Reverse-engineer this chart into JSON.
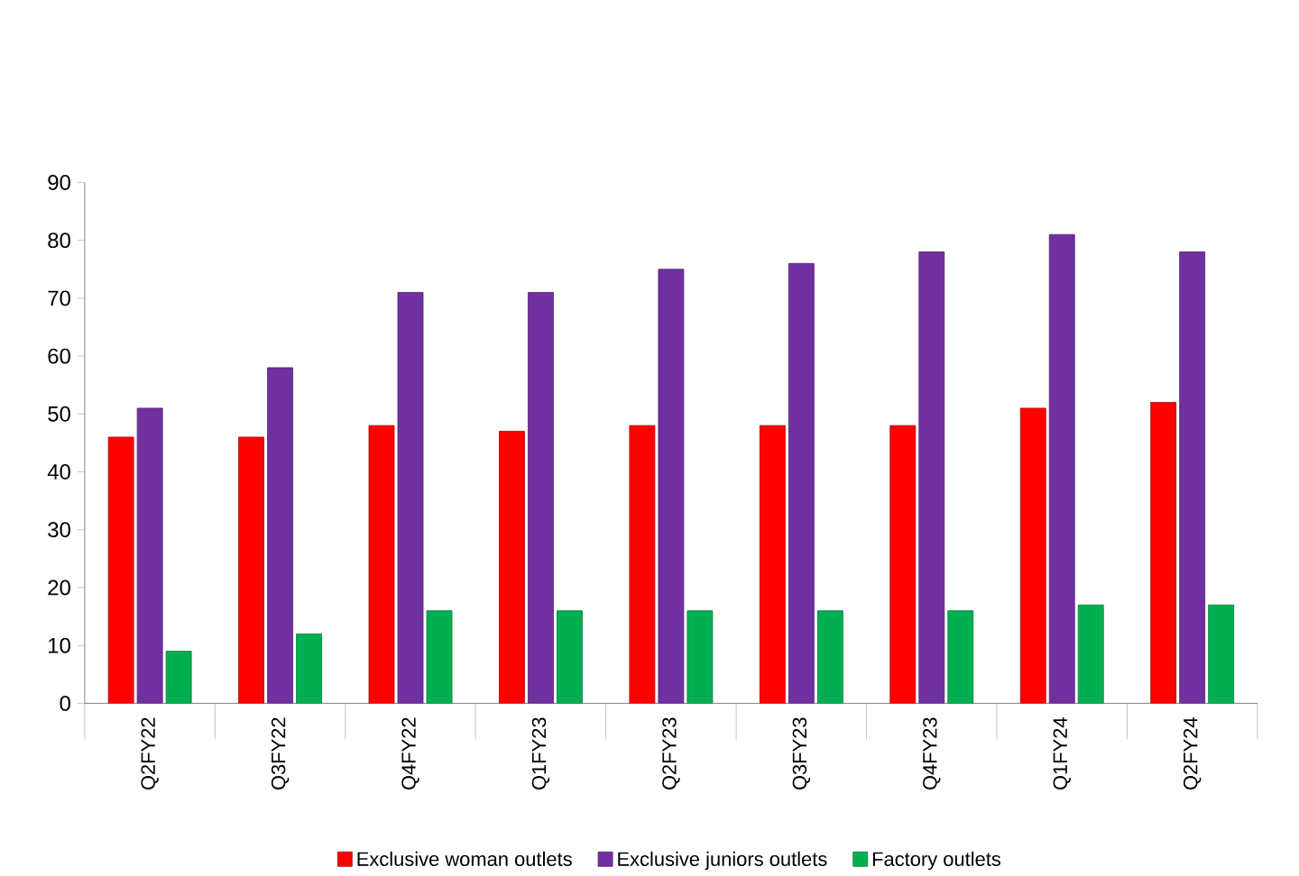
{
  "chart_data": {
    "type": "bar",
    "categories": [
      "Q2FY22",
      "Q3FY22",
      "Q4FY22",
      "Q1FY23",
      "Q2FY23",
      "Q3FY23",
      "Q4FY23",
      "Q1FY24",
      "Q2FY24"
    ],
    "series": [
      {
        "name": "Exclusive woman outlets",
        "color": "#ff0000",
        "values": [
          46,
          46,
          48,
          47,
          48,
          48,
          48,
          51,
          52
        ]
      },
      {
        "name": "Exclusive juniors outlets",
        "color": "#7030a0",
        "values": [
          51,
          58,
          71,
          71,
          75,
          76,
          78,
          81,
          78
        ]
      },
      {
        "name": "Factory outlets",
        "color": "#00b050",
        "values": [
          9,
          12,
          16,
          16,
          16,
          16,
          16,
          17,
          17
        ]
      }
    ],
    "ylim": [
      0,
      90
    ],
    "yticks": [
      0,
      10,
      20,
      30,
      40,
      50,
      60,
      70,
      80,
      90
    ],
    "grid": false,
    "legend": "bottom"
  }
}
